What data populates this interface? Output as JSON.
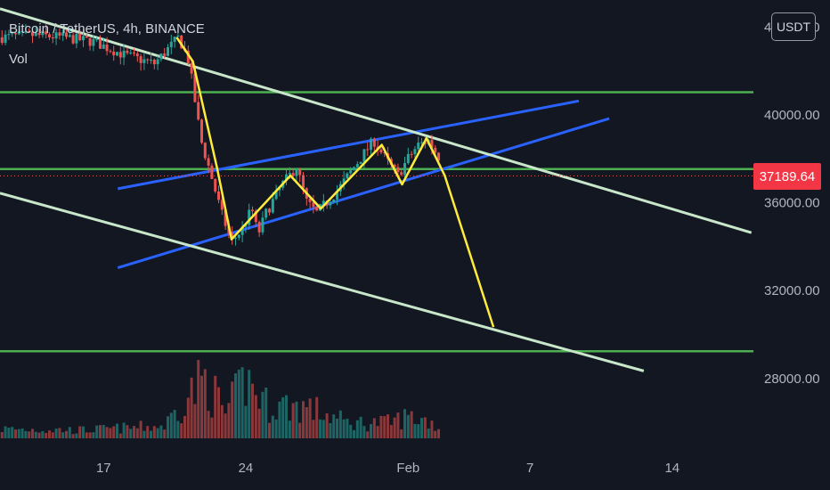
{
  "header": {
    "symbol_line": "Bitcoin / TetherUS, 4h, BINANCE",
    "volume_label": "Vol"
  },
  "currency_button": "USDT",
  "last_price": "37189.64",
  "colors": {
    "background": "#131722",
    "up": "#26a69a",
    "down": "#ef5350",
    "channel": "#2962ff",
    "support": "#4caf50",
    "trendline": "#c8e6c9",
    "path": "#ffeb3b",
    "price_tag": "#f23645"
  },
  "chart_data": {
    "type": "candlestick",
    "title": "Bitcoin / TetherUS, 4h, BINANCE",
    "y_axis": {
      "ticks": [
        44000,
        40000,
        36000,
        32000,
        28000
      ],
      "tick_labels": [
        "44000.00",
        "40000.00",
        "36000.00",
        "32000.00",
        "28000.00"
      ],
      "range": [
        24500,
        45200
      ]
    },
    "x_axis": {
      "ticks": [
        {
          "label": "17",
          "day": 17
        },
        {
          "label": "24",
          "day": 24
        },
        {
          "label": "Feb",
          "day": 32
        },
        {
          "label": "7",
          "day": 38
        },
        {
          "label": "14",
          "day": 45
        }
      ],
      "range_days": [
        11.9,
        49.0
      ]
    },
    "price_path": [
      [
        12.0,
        43500
      ],
      [
        13.5,
        43600
      ],
      [
        15.0,
        43500
      ],
      [
        16.5,
        43300
      ],
      [
        18.0,
        42700
      ],
      [
        19.5,
        42300
      ],
      [
        20.7,
        43500
      ],
      [
        21.2,
        42400
      ],
      [
        21.8,
        38800
      ],
      [
        22.3,
        37200
      ],
      [
        22.8,
        35500
      ],
      [
        23.3,
        34200
      ],
      [
        23.8,
        34700
      ],
      [
        24.3,
        35700
      ],
      [
        24.6,
        34500
      ],
      [
        25.0,
        35500
      ],
      [
        25.8,
        36800
      ],
      [
        26.5,
        37600
      ],
      [
        27.0,
        36000
      ],
      [
        27.5,
        35500
      ],
      [
        28.0,
        36000
      ],
      [
        28.5,
        36500
      ],
      [
        29.5,
        37800
      ],
      [
        30.3,
        38800
      ],
      [
        31.0,
        37800
      ],
      [
        31.5,
        37200
      ],
      [
        32.0,
        38000
      ],
      [
        32.5,
        38600
      ],
      [
        33.0,
        38800
      ],
      [
        33.6,
        37900
      ]
    ],
    "volume_profile": [
      [
        12.0,
        15
      ],
      [
        16.0,
        13
      ],
      [
        20.0,
        20
      ],
      [
        21.2,
        70
      ],
      [
        22.0,
        95
      ],
      [
        23.0,
        40
      ],
      [
        24.0,
        95
      ],
      [
        25.0,
        55
      ],
      [
        27.0,
        50
      ],
      [
        29.0,
        25
      ],
      [
        31.0,
        25
      ],
      [
        32.0,
        35
      ],
      [
        33.0,
        28
      ],
      [
        33.6,
        15
      ]
    ],
    "support_levels": [
      41000,
      37500,
      29200
    ],
    "last_price": 37189.64,
    "trendlines": [
      {
        "kind": "channel-upper",
        "from": [
          17.7,
          36600
        ],
        "to": [
          40.4,
          40600
        ]
      },
      {
        "kind": "channel-lower",
        "from": [
          17.7,
          33000
        ],
        "to": [
          41.9,
          39800
        ]
      },
      {
        "kind": "descending-upper",
        "from": [
          11.9,
          44800
        ],
        "to": [
          48.9,
          34600
        ]
      },
      {
        "kind": "descending-lower",
        "from": [
          11.9,
          36400
        ],
        "to": [
          43.6,
          28300
        ]
      }
    ],
    "projection_path": [
      [
        20.6,
        43500
      ],
      [
        21.4,
        42400
      ],
      [
        22.6,
        37500
      ],
      [
        23.3,
        34300
      ],
      [
        26.2,
        37200
      ],
      [
        27.7,
        35700
      ],
      [
        30.7,
        38600
      ],
      [
        31.7,
        36800
      ],
      [
        32.9,
        38900
      ],
      [
        33.8,
        37200
      ],
      [
        36.2,
        30300
      ]
    ]
  }
}
